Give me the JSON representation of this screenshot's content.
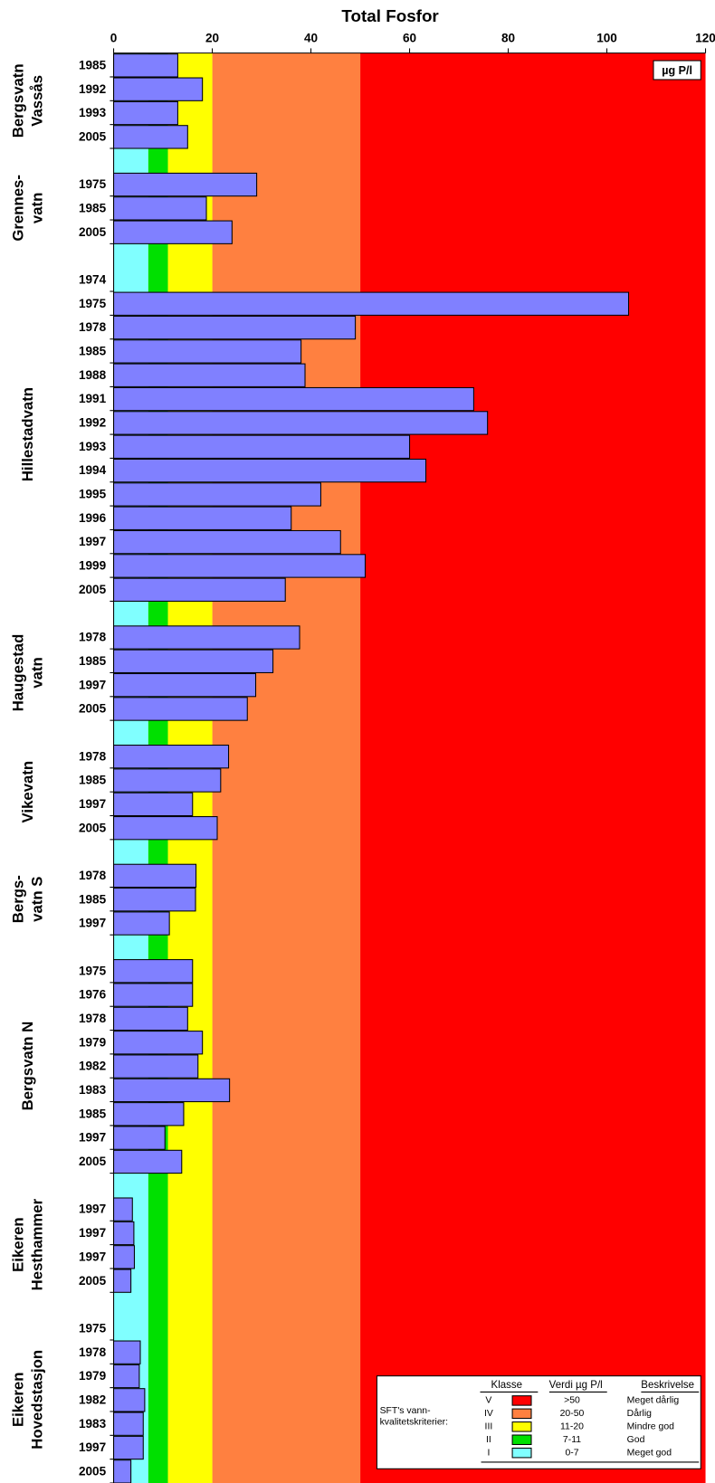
{
  "chart_data": {
    "type": "bar",
    "orientation": "horizontal",
    "title": "Total Fosfor",
    "unit_label": "µg P/l",
    "xlim": [
      0,
      120
    ],
    "xticks": [
      0,
      20,
      40,
      60,
      80,
      100,
      120
    ],
    "bar_color": "#8080ff",
    "groups": [
      {
        "name_lines": [
          "Bergsvatn",
          "Vassås"
        ],
        "categories": [
          "1985",
          "1992",
          "1993",
          "2005"
        ],
        "values": [
          13,
          18,
          13,
          15
        ]
      },
      {
        "name_lines": [
          "Grennes-",
          "vatn"
        ],
        "categories": [
          "1975",
          "1985",
          "2005"
        ],
        "values": [
          29,
          18.8,
          24
        ]
      },
      {
        "name_lines": [
          "Hillestadvatn"
        ],
        "categories": [
          "1974",
          "1975",
          "1978",
          "1985",
          "1988",
          "1991",
          "1992",
          "1993",
          "1994",
          "1995",
          "1996",
          "1997",
          "1999",
          "2005"
        ],
        "values": [
          null,
          104.4,
          49,
          38,
          38.8,
          73,
          75.8,
          60,
          63.3,
          42,
          36,
          46,
          51,
          34.8
        ]
      },
      {
        "name_lines": [
          "Haugestad",
          "vatn"
        ],
        "categories": [
          "1978",
          "1985",
          "1997",
          "2005"
        ],
        "values": [
          37.7,
          32.3,
          28.8,
          27.1
        ]
      },
      {
        "name_lines": [
          "Vikevatn"
        ],
        "categories": [
          "1978",
          "1985",
          "1997",
          "2005"
        ],
        "values": [
          23.3,
          21.7,
          16,
          21
        ]
      },
      {
        "name_lines": [
          "Bergs-",
          "vatn S"
        ],
        "categories": [
          "1978",
          "1985",
          "1997"
        ],
        "values": [
          16.7,
          16.6,
          11.3
        ]
      },
      {
        "name_lines": [
          "Bergsvatn N"
        ],
        "categories": [
          "1975",
          "1976",
          "1978",
          "1979",
          "1982",
          "1983",
          "1985",
          "1997",
          "2005"
        ],
        "values": [
          16,
          16,
          15,
          18,
          17.1,
          23.5,
          14.2,
          10.4,
          13.8
        ]
      },
      {
        "name_lines": [
          "Eikeren",
          "Hesthammer"
        ],
        "categories": [
          "1997",
          "1997",
          "1997",
          "2005"
        ],
        "values": [
          3.8,
          4.1,
          4.2,
          3.5
        ]
      },
      {
        "name_lines": [
          "Eikeren",
          "Hovedstasjon"
        ],
        "categories": [
          "1975",
          "1978",
          "1979",
          "1982",
          "1983",
          "1997",
          "2005"
        ],
        "values": [
          null,
          5.4,
          5.2,
          6.3,
          6,
          6,
          3.5
        ]
      }
    ],
    "legend": {
      "note_lines": [
        "SFT's vann-",
        "kvalitetskriterier:"
      ],
      "headers": [
        "Klasse",
        "Verdi µg P/l",
        "Beskrivelse"
      ],
      "classes": [
        {
          "class": "V",
          "color": "#ff0000",
          "range_label": ">50",
          "min": 50,
          "max": null,
          "description": "Meget dårlig"
        },
        {
          "class": "IV",
          "color": "#ff8040",
          "range_label": "20-50",
          "min": 20,
          "max": 50,
          "description": "Dårlig"
        },
        {
          "class": "III",
          "color": "#ffff00",
          "range_label": "11-20",
          "min": 11,
          "max": 20,
          "description": "Mindre god"
        },
        {
          "class": "II",
          "color": "#00e000",
          "range_label": "7-11",
          "min": 7,
          "max": 11,
          "description": "God"
        },
        {
          "class": "I",
          "color": "#80ffff",
          "range_label": "0-7",
          "min": 0,
          "max": 7,
          "description": "Meget god"
        }
      ]
    }
  }
}
